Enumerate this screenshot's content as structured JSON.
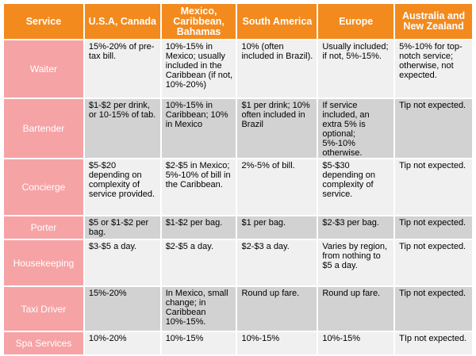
{
  "table": {
    "headers": [
      "Service",
      "U.S.A, Canada",
      "Mexico, Caribbean, Bahamas",
      "South America",
      "Europe",
      "Australia and New Zealand"
    ],
    "rows": [
      {
        "service": "Waiter",
        "cells": [
          "15%-20% of pre-tax bill.",
          "10%-15% in Mexico; usually included in the Caribbean (if not, 10%-20%)",
          "10% (often included in Brazil).",
          "Usually included; if not, 5%-15%.",
          "5%-10% for top-notch service; otherwise, not expected."
        ]
      },
      {
        "service": "Bartender",
        "cells": [
          "$1-$2 per drink, or 10-15% of tab.",
          "10%-15% in Caribbean; 10% in Mexico",
          "$1 per drink; 10% often included in Brazil",
          "If service included, an extra 5% is optional; 5%-10% otherwise.",
          "Tip not expected."
        ]
      },
      {
        "service": "Concierge",
        "cells": [
          "$5-$20 depending on complexity of service provided.",
          "$2-$5 in Mexico; 5%-10% of bill in the Caribbean.",
          "2%-5% of bill.",
          "$5-$30 depending on complexity of service.",
          "Tip not expected."
        ]
      },
      {
        "service": "Porter",
        "cells": [
          "$5 or $1-$2 per bag.",
          "$1-$2 per bag.",
          "$1 per bag.",
          "$2-$3 per bag.",
          "Tip not expected."
        ]
      },
      {
        "service": "Housekeeping",
        "cells": [
          "$3-$5 a day.",
          "$2-$5 a day.",
          "$2-$3 a day.",
          "Varies by region, from nothing to $5 a day.",
          "Tip not expected."
        ]
      },
      {
        "service": "Taxi Driver",
        "cells": [
          "15%-20%",
          "In Mexico, small change; in Caribbean 10%-15%.",
          "Round up fare.",
          "Round up fare.",
          "Tip not expected."
        ]
      },
      {
        "service": "Spa Services",
        "cells": [
          "10%-20%",
          "10%-15%",
          "10%-15%",
          "10%-15%",
          "TIp not expected."
        ]
      }
    ]
  }
}
